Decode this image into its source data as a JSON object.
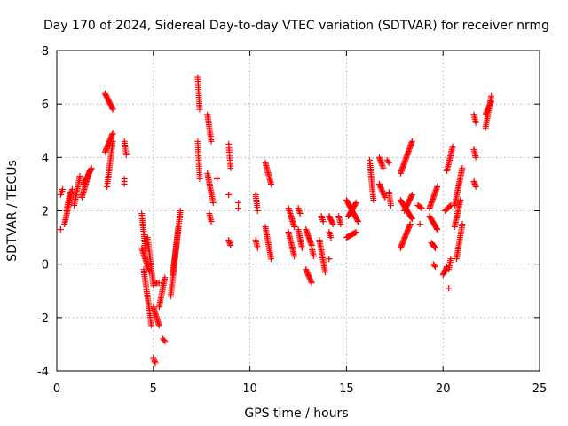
{
  "chart_data": {
    "type": "scatter",
    "title": "Day 170 of 2024, Sidereal Day-to-day VTEC variation (SDTVAR) for receiver nrmg",
    "xlabel": "GPS time / hours",
    "ylabel": "SDTVAR / TECUs",
    "xlim": [
      0,
      25
    ],
    "ylim": [
      -4,
      8
    ],
    "xticks": [
      "0",
      "5",
      "10",
      "15",
      "20",
      "25"
    ],
    "yticks": [
      "-4",
      "-2",
      "0",
      "2",
      "4",
      "6",
      "8"
    ],
    "grid": true,
    "marker": "plus",
    "color": "#ff0000",
    "segments": [
      {
        "x0": 0.2,
        "x1": 0.2,
        "y0": 1.3,
        "y1": 1.3
      },
      {
        "x0": 0.2,
        "x1": 0.3,
        "y0": 2.6,
        "y1": 2.8
      },
      {
        "x0": 0.4,
        "x1": 0.8,
        "y0": 1.5,
        "y1": 2.8
      },
      {
        "x0": 0.5,
        "x1": 0.7,
        "y0": 2.0,
        "y1": 2.7
      },
      {
        "x0": 0.9,
        "x1": 1.2,
        "y0": 2.2,
        "y1": 3.3
      },
      {
        "x0": 1.3,
        "x1": 1.7,
        "y0": 2.5,
        "y1": 3.5
      },
      {
        "x0": 1.4,
        "x1": 1.8,
        "y0": 3.0,
        "y1": 3.6
      },
      {
        "x0": 2.5,
        "x1": 2.9,
        "y0": 6.4,
        "y1": 5.8
      },
      {
        "x0": 2.5,
        "x1": 2.9,
        "y0": 4.2,
        "y1": 4.9
      },
      {
        "x0": 2.6,
        "x1": 2.9,
        "y0": 2.9,
        "y1": 4.6
      },
      {
        "x0": 3.5,
        "x1": 3.6,
        "y0": 4.6,
        "y1": 4.1
      },
      {
        "x0": 3.5,
        "x1": 3.5,
        "y0": 3.2,
        "y1": 3.0
      },
      {
        "x0": 4.4,
        "x1": 4.6,
        "y0": 1.9,
        "y1": 0.5
      },
      {
        "x0": 4.4,
        "x1": 4.8,
        "y0": 0.6,
        "y1": -0.3
      },
      {
        "x0": 4.5,
        "x1": 4.9,
        "y0": -0.2,
        "y1": -2.3
      },
      {
        "x0": 4.7,
        "x1": 5.0,
        "y0": 1.0,
        "y1": -0.8
      },
      {
        "x0": 5.1,
        "x1": 5.3,
        "y0": -0.7,
        "y1": -0.7
      },
      {
        "x0": 5.0,
        "x1": 5.3,
        "y0": -1.6,
        "y1": -2.3
      },
      {
        "x0": 5.3,
        "x1": 5.6,
        "y0": -1.6,
        "y1": -0.5
      },
      {
        "x0": 5.0,
        "x1": 5.1,
        "y0": -3.5,
        "y1": -3.7
      },
      {
        "x0": 5.5,
        "x1": 5.6,
        "y0": -2.8,
        "y1": -2.9
      },
      {
        "x0": 5.9,
        "x1": 6.4,
        "y0": -1.2,
        "y1": 2.0
      },
      {
        "x0": 6.0,
        "x1": 6.3,
        "y0": -0.4,
        "y1": 1.4
      },
      {
        "x0": 7.3,
        "x1": 7.4,
        "y0": 7.0,
        "y1": 5.8
      },
      {
        "x0": 7.3,
        "x1": 7.4,
        "y0": 4.6,
        "y1": 3.2
      },
      {
        "x0": 7.8,
        "x1": 8.0,
        "y0": 5.6,
        "y1": 4.6
      },
      {
        "x0": 7.8,
        "x1": 8.1,
        "y0": 3.4,
        "y1": 2.3
      },
      {
        "x0": 7.9,
        "x1": 8.0,
        "y0": 1.9,
        "y1": 1.6
      },
      {
        "x0": 8.3,
        "x1": 8.3,
        "y0": 3.2,
        "y1": 3.2
      },
      {
        "x0": 8.9,
        "x1": 9.0,
        "y0": 4.5,
        "y1": 3.6
      },
      {
        "x0": 8.9,
        "x1": 8.9,
        "y0": 2.6,
        "y1": 2.6
      },
      {
        "x0": 8.9,
        "x1": 9.0,
        "y0": 0.9,
        "y1": 0.7
      },
      {
        "x0": 9.4,
        "x1": 9.4,
        "y0": 2.3,
        "y1": 2.1
      },
      {
        "x0": 10.3,
        "x1": 10.4,
        "y0": 2.6,
        "y1": 2.0
      },
      {
        "x0": 10.3,
        "x1": 10.4,
        "y0": 0.9,
        "y1": 0.6
      },
      {
        "x0": 10.8,
        "x1": 11.1,
        "y0": 3.8,
        "y1": 3.0
      },
      {
        "x0": 10.8,
        "x1": 11.1,
        "y0": 1.4,
        "y1": 0.2
      },
      {
        "x0": 12.0,
        "x1": 12.3,
        "y0": 2.1,
        "y1": 1.4
      },
      {
        "x0": 12.0,
        "x1": 12.3,
        "y0": 1.2,
        "y1": 0.3
      },
      {
        "x0": 12.5,
        "x1": 12.6,
        "y0": 2.1,
        "y1": 1.9
      },
      {
        "x0": 12.5,
        "x1": 12.7,
        "y0": 1.3,
        "y1": 0.6
      },
      {
        "x0": 12.9,
        "x1": 13.2,
        "y0": 1.3,
        "y1": 0.7
      },
      {
        "x0": 12.9,
        "x1": 13.2,
        "y0": -0.2,
        "y1": -0.7
      },
      {
        "x0": 13.2,
        "x1": 13.3,
        "y0": 0.6,
        "y1": 0.3
      },
      {
        "x0": 13.6,
        "x1": 13.9,
        "y0": 0.9,
        "y1": -0.3
      },
      {
        "x0": 13.7,
        "x1": 13.8,
        "y0": 1.8,
        "y1": 1.6
      },
      {
        "x0": 14.1,
        "x1": 14.3,
        "y0": 1.8,
        "y1": 1.5
      },
      {
        "x0": 14.1,
        "x1": 14.2,
        "y0": 1.2,
        "y1": 1.0
      },
      {
        "x0": 14.1,
        "x1": 14.1,
        "y0": 0.2,
        "y1": 0.2
      },
      {
        "x0": 14.6,
        "x1": 14.7,
        "y0": 1.8,
        "y1": 1.5
      },
      {
        "x0": 15.0,
        "x1": 15.6,
        "y0": 2.4,
        "y1": 1.6
      },
      {
        "x0": 15.0,
        "x1": 15.5,
        "y0": 1.0,
        "y1": 1.2
      },
      {
        "x0": 15.1,
        "x1": 15.5,
        "y0": 1.8,
        "y1": 2.3
      },
      {
        "x0": 16.2,
        "x1": 16.4,
        "y0": 3.9,
        "y1": 2.4
      },
      {
        "x0": 16.7,
        "x1": 16.9,
        "y0": 4.0,
        "y1": 3.6
      },
      {
        "x0": 16.7,
        "x1": 17.0,
        "y0": 3.0,
        "y1": 2.5
      },
      {
        "x0": 17.2,
        "x1": 17.3,
        "y0": 2.7,
        "y1": 2.2
      },
      {
        "x0": 17.1,
        "x1": 17.2,
        "y0": 3.9,
        "y1": 3.8
      },
      {
        "x0": 17.8,
        "x1": 18.4,
        "y0": 3.4,
        "y1": 4.6
      },
      {
        "x0": 17.8,
        "x1": 18.4,
        "y0": 2.4,
        "y1": 1.7
      },
      {
        "x0": 17.8,
        "x1": 18.3,
        "y0": 0.6,
        "y1": 1.5
      },
      {
        "x0": 18.0,
        "x1": 18.4,
        "y0": 2.0,
        "y1": 2.6
      },
      {
        "x0": 18.7,
        "x1": 18.9,
        "y0": 2.2,
        "y1": 2.1
      },
      {
        "x0": 18.8,
        "x1": 18.8,
        "y0": 1.5,
        "y1": 1.5
      },
      {
        "x0": 19.3,
        "x1": 19.7,
        "y0": 2.1,
        "y1": 2.9
      },
      {
        "x0": 19.3,
        "x1": 19.7,
        "y0": 1.8,
        "y1": 1.3
      },
      {
        "x0": 19.4,
        "x1": 19.6,
        "y0": 0.8,
        "y1": 0.6
      },
      {
        "x0": 19.5,
        "x1": 19.6,
        "y0": 0.0,
        "y1": -0.1
      },
      {
        "x0": 20.0,
        "x1": 20.2,
        "y0": -0.4,
        "y1": -0.1
      },
      {
        "x0": 20.2,
        "x1": 20.5,
        "y0": 3.5,
        "y1": 4.4
      },
      {
        "x0": 20.1,
        "x1": 20.4,
        "y0": 2.0,
        "y1": 2.2
      },
      {
        "x0": 20.3,
        "x1": 20.4,
        "y0": -0.2,
        "y1": 0.2
      },
      {
        "x0": 20.3,
        "x1": 20.3,
        "y0": -0.9,
        "y1": -0.9
      },
      {
        "x0": 20.6,
        "x1": 21.0,
        "y0": 2.2,
        "y1": 3.6
      },
      {
        "x0": 20.7,
        "x1": 21.0,
        "y0": 0.2,
        "y1": 1.5
      },
      {
        "x0": 20.6,
        "x1": 20.9,
        "y0": 1.4,
        "y1": 2.4
      },
      {
        "x0": 21.6,
        "x1": 21.7,
        "y0": 5.6,
        "y1": 5.3
      },
      {
        "x0": 21.6,
        "x1": 21.7,
        "y0": 4.3,
        "y1": 4.0
      },
      {
        "x0": 21.6,
        "x1": 21.7,
        "y0": 3.1,
        "y1": 2.9
      },
      {
        "x0": 22.2,
        "x1": 22.5,
        "y0": 5.1,
        "y1": 6.3
      },
      {
        "x0": 22.2,
        "x1": 22.5,
        "y0": 5.6,
        "y1": 6.1
      }
    ]
  }
}
